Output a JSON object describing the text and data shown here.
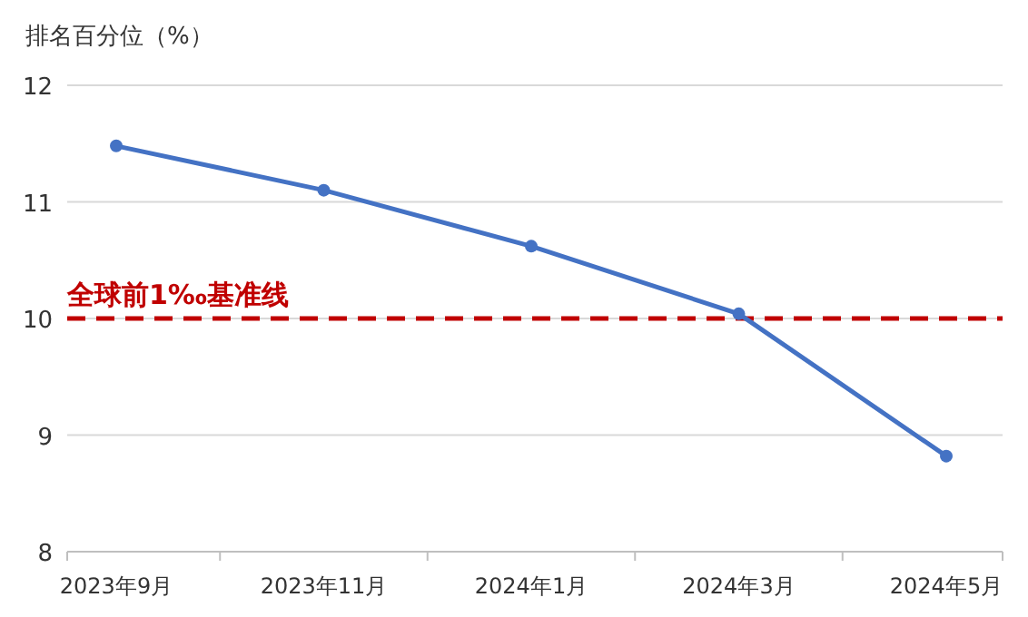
{
  "chart_data": {
    "type": "line",
    "ylabel": "排名百分位（%）",
    "categories": [
      "2023年9月",
      "2023年11月",
      "2024年1月",
      "2024年3月",
      "2024年5月"
    ],
    "series": [
      {
        "color": "#4472c4",
        "values": [
          11.48,
          11.1,
          10.62,
          10.04,
          8.82
        ]
      }
    ],
    "ylim": [
      8,
      12
    ],
    "yticks": [
      8,
      9,
      10,
      11,
      12
    ],
    "grid": "y",
    "marker": "circle",
    "line_style": "solid",
    "ref_lines": [
      {
        "axis": "y",
        "value": 10,
        "label": "全球前1‰基准线",
        "color": "#c00000",
        "line_style": "dashed"
      }
    ]
  }
}
